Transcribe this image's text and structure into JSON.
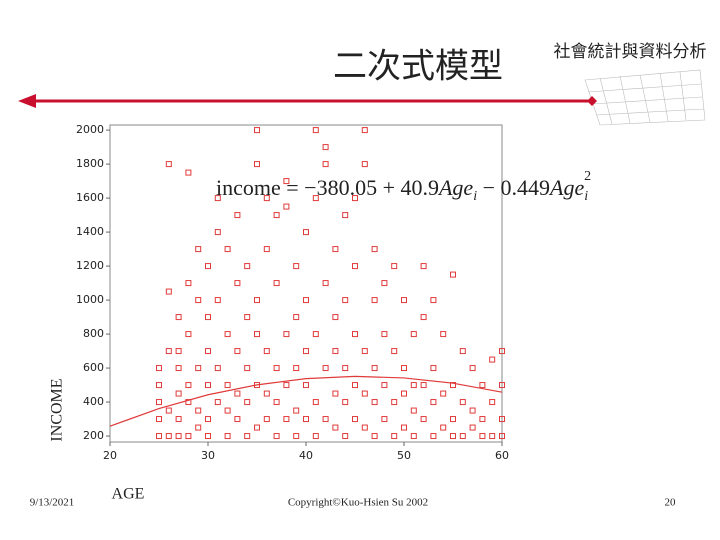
{
  "slide": {
    "title": "二次式模型",
    "course": "社會統計與資料分析",
    "date": "9/13/2021",
    "copyright": "Copyright©Kuo-Hsien Su 2002",
    "page": "20"
  },
  "chart_data": {
    "type": "scatter",
    "color": "#e03a3a",
    "xlabel": "AGE",
    "ylabel": "INCOME",
    "equation": [
      "income = −380.05 + 40.9",
      "Age",
      "i",
      " − 0.449",
      "Age",
      "i",
      "2"
    ],
    "xlim": [
      20,
      60
    ],
    "xticks": [
      20,
      30,
      40,
      50,
      60
    ],
    "ylim": [
      165,
      2030
    ],
    "yticks": [
      200,
      400,
      600,
      800,
      1000,
      1200,
      1400,
      1600,
      1800,
      2000
    ],
    "points": {
      "x": [
        25,
        25,
        25,
        25,
        25,
        26,
        26,
        26,
        26,
        26,
        27,
        27,
        27,
        27,
        27,
        27,
        28,
        28,
        28,
        28,
        28,
        28,
        29,
        29,
        29,
        29,
        29,
        30,
        30,
        30,
        30,
        30,
        30,
        31,
        31,
        31,
        31,
        31,
        32,
        32,
        32,
        32,
        32,
        33,
        33,
        33,
        33,
        33,
        34,
        34,
        34,
        34,
        34,
        35,
        35,
        35,
        35,
        35,
        35,
        36,
        36,
        36,
        36,
        36,
        37,
        37,
        37,
        37,
        37,
        38,
        38,
        38,
        38,
        38,
        39,
        39,
        39,
        39,
        39,
        40,
        40,
        40,
        40,
        40,
        41,
        41,
        41,
        41,
        41,
        42,
        42,
        42,
        42,
        42,
        43,
        43,
        43,
        43,
        43,
        44,
        44,
        44,
        44,
        44,
        45,
        45,
        45,
        45,
        45,
        46,
        46,
        46,
        46,
        46,
        47,
        47,
        47,
        47,
        47,
        48,
        48,
        48,
        48,
        49,
        49,
        49,
        49,
        50,
        50,
        50,
        50,
        51,
        51,
        51,
        51,
        52,
        52,
        52,
        52,
        53,
        53,
        53,
        53,
        54,
        54,
        54,
        55,
        55,
        55,
        55,
        56,
        56,
        56,
        57,
        57,
        57,
        58,
        58,
        58,
        59,
        59,
        59,
        60,
        60,
        60,
        60
      ],
      "y": [
        200,
        300,
        400,
        500,
        600,
        1800,
        1050,
        200,
        350,
        700,
        200,
        300,
        450,
        600,
        700,
        900,
        1750,
        1100,
        200,
        400,
        500,
        800,
        250,
        350,
        600,
        1300,
        1000,
        200,
        300,
        500,
        700,
        900,
        1200,
        1400,
        1600,
        400,
        600,
        1000,
        200,
        350,
        500,
        800,
        1300,
        300,
        450,
        700,
        1100,
        1500,
        200,
        400,
        600,
        900,
        1200,
        2000,
        1800,
        250,
        500,
        800,
        1000,
        300,
        450,
        700,
        1300,
        1600,
        200,
        400,
        600,
        1100,
        1500,
        1550,
        1700,
        300,
        500,
        800,
        200,
        350,
        600,
        900,
        1200,
        300,
        500,
        700,
        1000,
        1400,
        2000,
        1600,
        200,
        400,
        800,
        1900,
        1800,
        300,
        600,
        1100,
        250,
        450,
        700,
        900,
        1300,
        200,
        400,
        600,
        1000,
        1500,
        300,
        500,
        800,
        1200,
        1600,
        2000,
        1800,
        250,
        450,
        700,
        200,
        400,
        600,
        1000,
        1300,
        300,
        500,
        800,
        1100,
        200,
        400,
        700,
        1200,
        250,
        450,
        600,
        1000,
        200,
        350,
        500,
        800,
        300,
        500,
        1200,
        900,
        200,
        400,
        600,
        1000,
        250,
        450,
        800,
        200,
        300,
        500,
        1150,
        200,
        400,
        700,
        250,
        350,
        600,
        200,
        300,
        500,
        200,
        400,
        650,
        200,
        300,
        500,
        700
      ]
    },
    "fit": {
      "x": [
        20,
        25,
        30,
        35,
        40,
        45,
        50,
        55,
        60
      ],
      "y": [
        258,
        362,
        443,
        501,
        538,
        551,
        542,
        511,
        458
      ]
    }
  }
}
